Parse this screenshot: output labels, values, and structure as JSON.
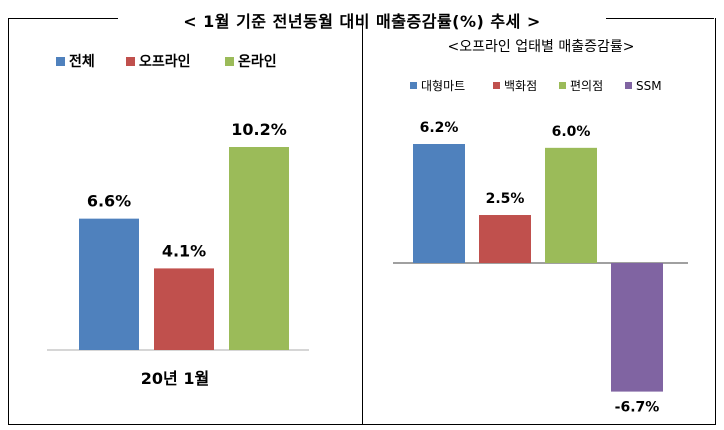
{
  "main_title": "< 1월 기준 전년동월 대비 매출증감률(%) 추세 >",
  "chart_data": [
    {
      "type": "bar",
      "title": "",
      "categories": [
        "20년 1월"
      ],
      "series": [
        {
          "name": "전체",
          "color": "#4f81bd",
          "value": 6.6,
          "label": "6.6%"
        },
        {
          "name": "오프라인",
          "color": "#c0504d",
          "value": 4.1,
          "label": "4.1%"
        },
        {
          "name": "온라인",
          "color": "#9bbb59",
          "value": 10.2,
          "label": "10.2%"
        }
      ],
      "xlabel": "20년 1월",
      "ylabel": "",
      "legend": "top",
      "grid": false,
      "ylim": [
        0,
        10.2
      ]
    },
    {
      "type": "bar",
      "title": "<오프라인 업태별 매출증감률>",
      "series": [
        {
          "name": "대형마트",
          "color": "#4f81bd",
          "value": 6.2,
          "label": "6.2%"
        },
        {
          "name": "백화점",
          "color": "#c0504d",
          "value": 2.5,
          "label": "2.5%"
        },
        {
          "name": "편의점",
          "color": "#9bbb59",
          "value": 6.0,
          "label": "6.0%"
        },
        {
          "name": "SSM",
          "color": "#8064a2",
          "value": -6.7,
          "label": "-6.7%"
        }
      ],
      "xlabel": "",
      "ylabel": "",
      "legend": "top",
      "grid": false,
      "ylim": [
        -6.7,
        6.2
      ]
    }
  ]
}
